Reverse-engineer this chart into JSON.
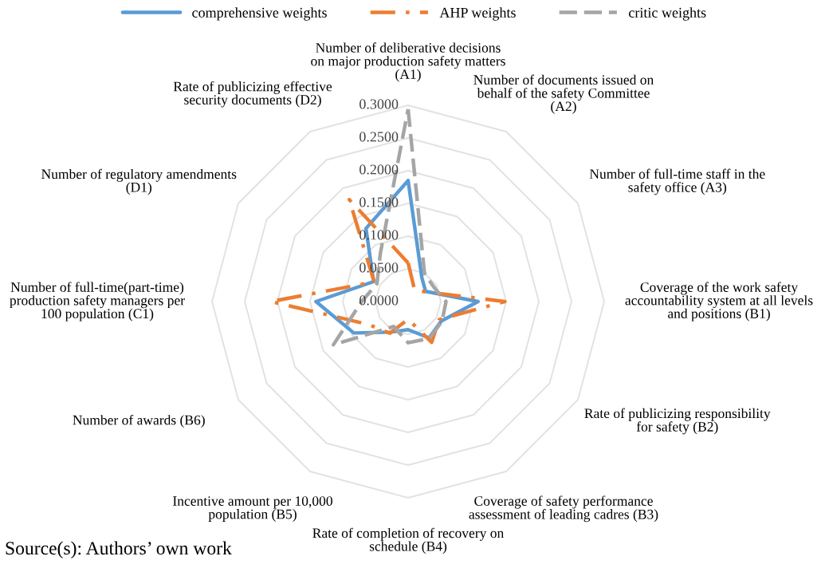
{
  "chart_data": {
    "type": "radar",
    "categories": [
      "Number of deliberative decisions\non major production safety matters\n(A1)",
      "Number of documents issued on\nbehalf of the safety Committee\n(A2)",
      "Number of full-time staff in the\nsafety office (A3)",
      "Coverage of the work safety\naccountability system at all levels\nand positions (B1)",
      "Rate of publicizing responsibility\nfor safety (B2)",
      "Coverage of safety performance\nassessment of leading cadres (B3)",
      "Rate of completion of recovery on\nschedule (B4)",
      "Incentive amount per 10,000\npopulation (B5)",
      "Number of awards (B6)",
      "Number of full-time(part-time)\nproduction safety managers per\n100 population (C1)",
      "Number of regulatory amendments\n(D1)",
      "Rate of publicizing effective\nsecurity documents (D2)"
    ],
    "series": [
      {
        "name": "comprehensive weights",
        "color": "#5b9bd5",
        "line_style": "solid",
        "values": [
          0.185,
          0.042,
          0.031,
          0.107,
          0.059,
          0.064,
          0.043,
          0.054,
          0.096,
          0.141,
          0.061,
          0.129
        ]
      },
      {
        "name": "AHP weights",
        "color": "#ed7d31",
        "line_style": "dashdot",
        "values": [
          0.059,
          0.02,
          0.03,
          0.148,
          0.055,
          0.072,
          0.027,
          0.056,
          0.07,
          0.21,
          0.06,
          0.18
        ]
      },
      {
        "name": "critic weights",
        "color": "#a5a5a5",
        "line_style": "dashed",
        "values": [
          0.294,
          0.05,
          0.045,
          0.058,
          0.06,
          0.065,
          0.063,
          0.044,
          0.132,
          0.071,
          0.055,
          0.085
        ]
      }
    ],
    "ylim": [
      0,
      0.3
    ],
    "yticks": [
      {
        "value": 0,
        "label": "0.0000"
      },
      {
        "value": 0.05,
        "label": "0.0500"
      },
      {
        "value": 0.1,
        "label": "0.1000"
      },
      {
        "value": 0.15,
        "label": "0.1500"
      },
      {
        "value": 0.2,
        "label": "0.2000"
      },
      {
        "value": 0.25,
        "label": "0.2500"
      },
      {
        "value": 0.3,
        "label": "0.3000"
      }
    ],
    "grid": true,
    "legend": "top",
    "marker": "none",
    "annotations": [
      "Source(s): Authors’ own work"
    ]
  }
}
